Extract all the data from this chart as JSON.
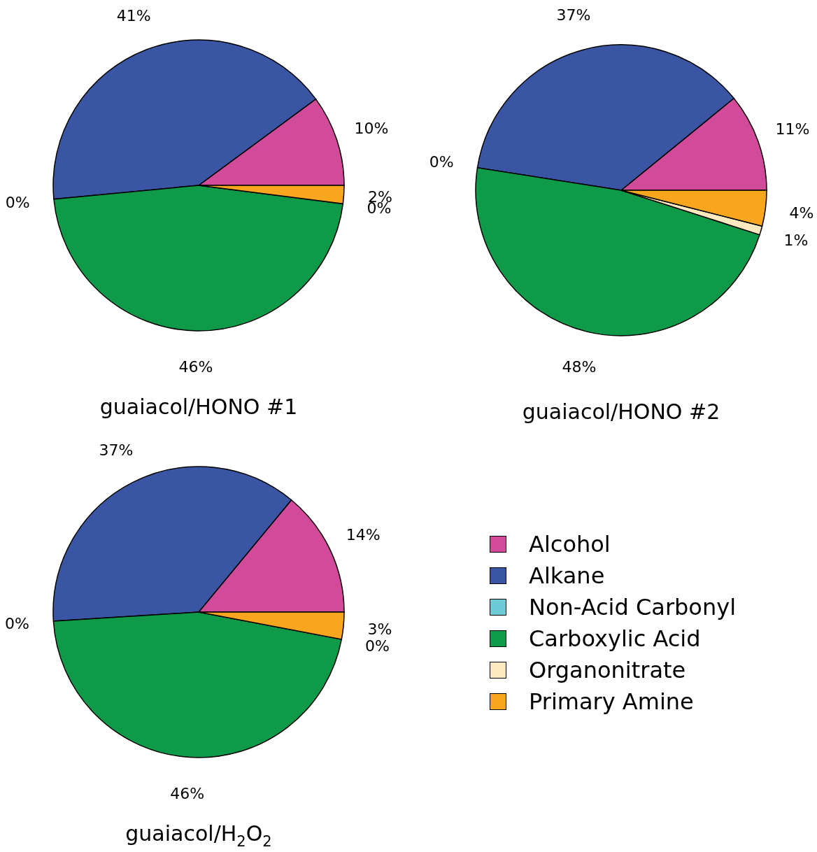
{
  "chart_data": [
    {
      "type": "pie",
      "title": "guaiacol/HONO #1",
      "categories": [
        null,
        null,
        null,
        null,
        null,
        null
      ],
      "values": [
        10,
        41,
        0,
        46,
        0,
        2
      ],
      "value_labels": [
        "10%",
        "41%",
        "0%",
        "46%",
        "0%",
        "2%"
      ],
      "colors": [
        "#d24a9a",
        "#3a55a4",
        "#6dcbd8",
        "#0e9a48",
        "#fde9c0",
        "#f9a61f"
      ]
    },
    {
      "type": "pie",
      "title": "guaiacol/HONO #2",
      "categories": [
        null,
        null,
        null,
        null,
        null,
        null
      ],
      "values": [
        11,
        37,
        0,
        48,
        1,
        4
      ],
      "value_labels": [
        "11%",
        "37%",
        "0%",
        "48%",
        "1%",
        "4%"
      ],
      "colors": [
        "#d24a9a",
        "#3a55a4",
        "#6dcbd8",
        "#0e9a48",
        "#fde9c0",
        "#f9a61f"
      ]
    },
    {
      "type": "pie",
      "title": "guaiacol/H$_{2}$O$_{2}$",
      "categories": [
        "Alcohol",
        "Alkane",
        "Non-Acid Carbonyl",
        "Carboxylic Acid",
        "Organonitrate",
        "Primary Amine"
      ],
      "values": [
        14,
        37,
        0,
        46,
        0,
        3
      ],
      "value_labels": [
        "14%",
        "37%",
        "0%",
        "46%",
        "0%",
        "3%"
      ],
      "colors": [
        "#d24a9a",
        "#3a55a4",
        "#6dcbd8",
        "#0e9a48",
        "#fde9c0",
        "#f9a61f"
      ],
      "legend": "right"
    }
  ]
}
